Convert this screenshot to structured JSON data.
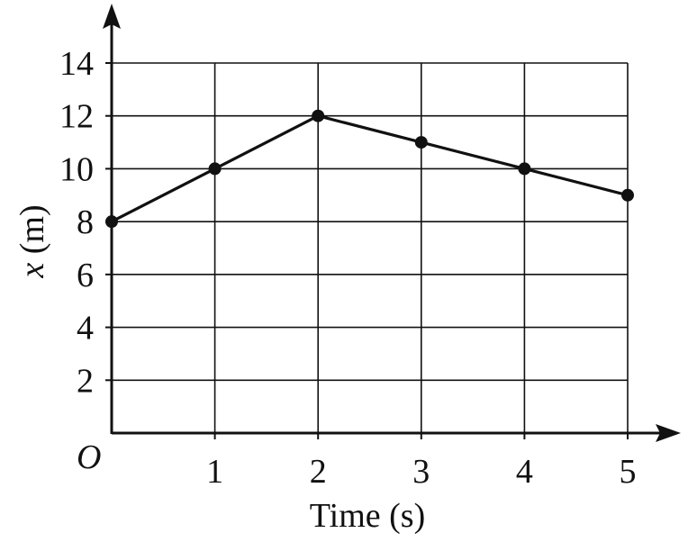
{
  "chart_data": {
    "type": "line",
    "x": [
      0,
      1,
      2,
      3,
      4,
      5
    ],
    "series": [
      {
        "values": [
          8,
          10,
          12,
          11,
          10,
          9
        ]
      }
    ],
    "xlabel": "Time (s)",
    "ylabel_var": "x",
    "ylabel_unit": " (m)",
    "origin_label": "O",
    "xlim": [
      0,
      5
    ],
    "ylim": [
      0,
      14
    ],
    "x_ticks": [
      1,
      2,
      3,
      4,
      5
    ],
    "y_ticks": [
      2,
      4,
      6,
      8,
      10,
      12,
      14
    ],
    "grid": true,
    "colors": {
      "line": "#111111",
      "grid": "#111111",
      "background": "#ffffff"
    }
  }
}
